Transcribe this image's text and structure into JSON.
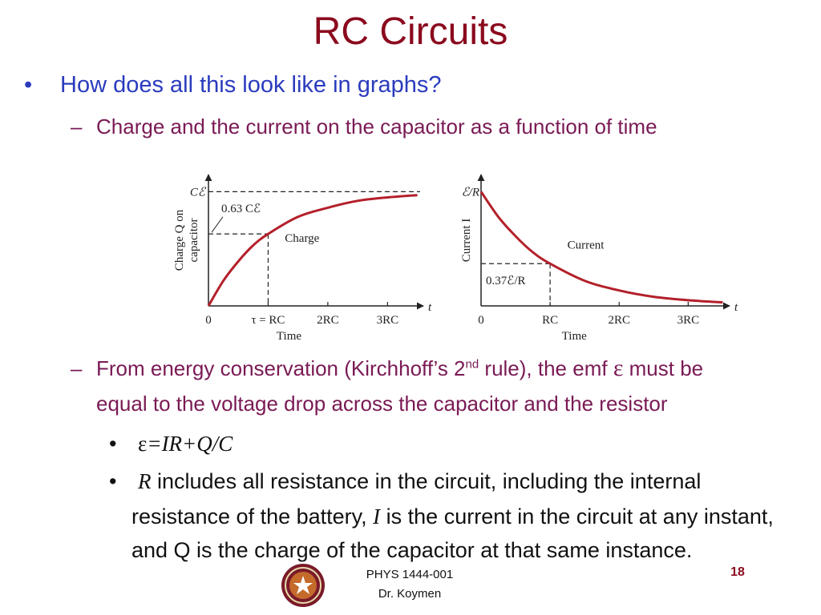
{
  "slide": {
    "title": "RC Circuits",
    "bullet1": "How does all this look like in graphs?",
    "sub1": "Charge and the current on the capacitor as a function of time",
    "sub2_part1": "From energy conservation (Kirchhoff’s 2",
    "sub2_sup": "nd",
    "sub2_part2": " rule), the emf ",
    "sub2_eps": "ε",
    "sub2_part3": " must be",
    "sub2_line2": "equal to the voltage drop across the capacitor and the resistor",
    "eq_eps": "ε",
    "eq_rest": "=IR+Q/C",
    "r_symbol": "R",
    "r_text1": " includes all resistance in the circuit, including the internal",
    "r_line2a": "resistance of the battery, ",
    "i_symbol": "I",
    "r_line2b": " is the current in the circuit at any instant,",
    "r_line3": "and Q is the charge of the capacitor at that same instance.",
    "footer_line1": "PHYS 1444-001",
    "footer_line2": "Dr. Koymen",
    "page_number": "18",
    "bullet_mark": "•",
    "dash_mark": "–"
  },
  "colors": {
    "title": "#8b0a1e",
    "bullet": "#2a3bbd",
    "sub": "#7a1a55",
    "curve": "#b3202a"
  },
  "chart_data": [
    {
      "type": "line",
      "series": [
        {
          "name": "Charge",
          "x": [
            0,
            0.25,
            0.5,
            0.75,
            1,
            1.5,
            2,
            2.5,
            3,
            3.5
          ],
          "y": [
            0,
            0.22,
            0.39,
            0.53,
            0.63,
            0.78,
            0.86,
            0.92,
            0.95,
            0.97
          ]
        }
      ],
      "xlabel": "Time",
      "ylabel": "Charge Q on capacitor",
      "ylabel_line1": "Charge Q on",
      "ylabel_line2": "capacitor",
      "x_axis_end": "t",
      "xticks": [
        "0",
        "τ = RC",
        "2RC",
        "3RC"
      ],
      "xtick_values": [
        0,
        1,
        2,
        3
      ],
      "y_asymptote": 1,
      "y_marker": 0.63,
      "label_asymptote": "Cℰ",
      "label_marker": "0.63 Cℰ",
      "xlim": [
        0,
        3.6
      ],
      "ylim": [
        0,
        1.15
      ]
    },
    {
      "type": "line",
      "series": [
        {
          "name": "Current",
          "x": [
            0,
            0.25,
            0.5,
            0.75,
            1,
            1.5,
            2,
            2.5,
            3,
            3.5
          ],
          "y": [
            1,
            0.78,
            0.61,
            0.47,
            0.37,
            0.22,
            0.135,
            0.08,
            0.05,
            0.03
          ]
        }
      ],
      "xlabel": "Time",
      "ylabel": "Current I",
      "x_axis_end": "t",
      "xticks": [
        "0",
        "RC",
        "2RC",
        "3RC"
      ],
      "xtick_values": [
        0,
        1,
        2,
        3
      ],
      "y_start": 1,
      "y_marker": 0.37,
      "label_start": "ℰ/R",
      "label_marker": "0.37ℰ/R",
      "xlim": [
        0,
        3.6
      ],
      "ylim": [
        0,
        1.15
      ]
    }
  ]
}
